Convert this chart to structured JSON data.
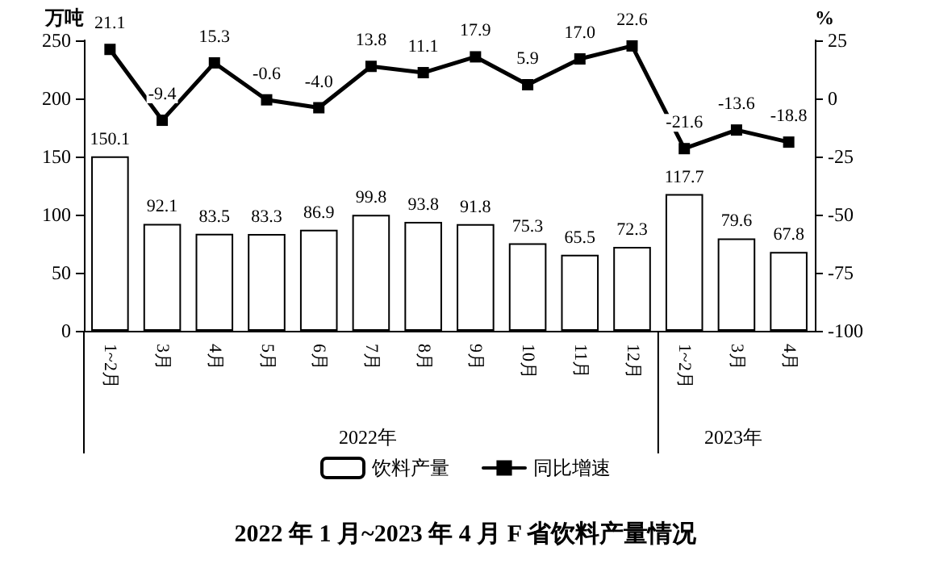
{
  "chart_data": {
    "type": "bar",
    "title": "2022 年 1 月~2023 年 4 月 F 省饮料产量情况",
    "ylabel": "万吨",
    "y2label": "%",
    "categories": [
      "1~2月",
      "3月",
      "4月",
      "5月",
      "6月",
      "7月",
      "8月",
      "9月",
      "10月",
      "11月",
      "12月",
      "1~2月",
      "3月",
      "4月"
    ],
    "series": [
      {
        "name": "饮料产量",
        "color": "#ffffff",
        "values": [
          150.1,
          92.1,
          83.5,
          83.3,
          86.9,
          99.8,
          93.8,
          91.8,
          75.3,
          65.5,
          72.3,
          117.7,
          79.6,
          67.8
        ],
        "value_labels": [
          "150.1",
          "92.1",
          "83.5",
          "83.3",
          "86.9",
          "99.8",
          "93.8",
          "91.8",
          "75.3",
          "65.5",
          "72.3",
          "117.7",
          "79.6",
          "67.8"
        ]
      },
      {
        "name": "同比增速",
        "type": "line",
        "axis": "y2",
        "color": "#000000",
        "marker": "square",
        "values": [
          21.1,
          -9.4,
          15.3,
          -0.6,
          -4.0,
          13.8,
          11.1,
          17.9,
          5.9,
          17.0,
          22.6,
          -21.6,
          -13.6,
          -18.8
        ],
        "value_labels": [
          "21.1",
          "-9.4",
          "15.3",
          "-0.6",
          "-4.0",
          "13.8",
          "11.1",
          "17.9",
          "5.9",
          "17.0",
          "22.6",
          "-21.6",
          "-13.6",
          "-18.8"
        ]
      }
    ],
    "ylim": [
      0,
      250
    ],
    "yticks": [
      0,
      50,
      100,
      150,
      200,
      250
    ],
    "y2lim": [
      -100,
      25
    ],
    "y2ticks": [
      -100,
      -75,
      -50,
      -25,
      0,
      25
    ],
    "annotations": [
      "2022年",
      "2023年"
    ],
    "legend": "bottom",
    "grid": false
  }
}
